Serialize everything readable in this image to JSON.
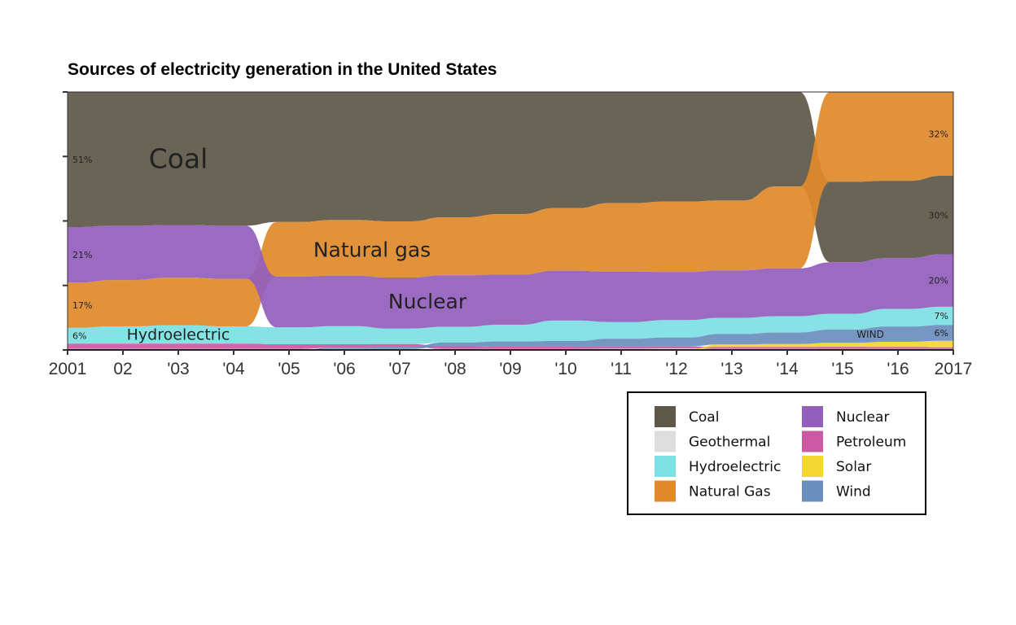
{
  "chart_data": {
    "type": "area",
    "title": "Sources of electricity generation in the United States",
    "x_tick_labels": [
      "2001",
      "02",
      "'03",
      "'04",
      "'05",
      "'06",
      "'07",
      "'08",
      "'09",
      "'10",
      "'11",
      "'12",
      "'13",
      "'14",
      "'15",
      "'16",
      "2017"
    ],
    "years": [
      2001,
      2002,
      2003,
      2004,
      2005,
      2006,
      2007,
      2008,
      2009,
      2010,
      2011,
      2012,
      2013,
      2014,
      2015,
      2016,
      2017
    ],
    "ylim": [
      0,
      100
    ],
    "stacking_note": "ranked stack: largest source on top each year",
    "series": [
      {
        "name": "Coal",
        "color": "#5e5849",
        "values": [
          51,
          50.5,
          50.5,
          50.5,
          50,
          49.5,
          49.5,
          47.5,
          47.5,
          45.5,
          43,
          43.5,
          43.5,
          37.5,
          30.5,
          30.5,
          30
        ]
      },
      {
        "name": "Geothermal",
        "color": "#dddddd",
        "values": [
          0.4,
          0.4,
          0.4,
          0.4,
          0.4,
          0.4,
          0.4,
          0.4,
          0.4,
          0.4,
          0.4,
          0.4,
          0.4,
          0.4,
          0.4,
          0.4,
          0.4
        ]
      },
      {
        "name": "Hydroelectric",
        "color": "#7de0e3",
        "values": [
          6,
          6.5,
          7,
          6.5,
          6.5,
          7,
          6,
          6,
          6.5,
          8,
          6.5,
          7,
          6.5,
          6.5,
          6,
          7,
          7
        ]
      },
      {
        "name": "Natural Gas",
        "color": "#e08a2b",
        "values": [
          17,
          17.5,
          18,
          18,
          21,
          21.5,
          21.5,
          22,
          23.5,
          24.5,
          26.5,
          28,
          28,
          32.5,
          34,
          35,
          32
        ]
      },
      {
        "name": "Nuclear",
        "color": "#935fbc",
        "values": [
          21,
          20.5,
          20,
          20,
          19.5,
          19.5,
          19.5,
          19.5,
          19.5,
          19.5,
          19.5,
          19,
          19,
          19,
          19.5,
          20,
          20
        ]
      },
      {
        "name": "Petroleum",
        "color": "#cc5aa3",
        "values": [
          2,
          2,
          2,
          2,
          1.8,
          1.3,
          1,
          1,
          0.9,
          0.9,
          0.8,
          0.8,
          0.8,
          0.8,
          0.8,
          0.8,
          0.6
        ]
      },
      {
        "name": "Solar",
        "color": "#f2d631",
        "values": [
          0,
          0,
          0,
          0,
          0,
          0,
          0,
          0,
          0,
          0,
          0.1,
          0.2,
          1,
          1.2,
          1.5,
          2,
          2.5
        ]
      },
      {
        "name": "Wind",
        "color": "#6b8fbd",
        "values": [
          0,
          0,
          0,
          0,
          0,
          0.5,
          0.8,
          1.4,
          2,
          2.2,
          3,
          3.5,
          4.2,
          4.5,
          5,
          6,
          6
        ]
      }
    ],
    "in_chart_labels": [
      {
        "text": "Coal",
        "series": "Coal"
      },
      {
        "text": "Natural gas",
        "series": "Natural Gas"
      },
      {
        "text": "Nuclear",
        "series": "Nuclear"
      },
      {
        "text": "Hydroelectric",
        "series": "Hydroelectric"
      },
      {
        "text": "WIND",
        "series": "Wind"
      }
    ],
    "value_labels_2001": [
      {
        "text": "51%",
        "series": "Coal"
      },
      {
        "text": "21%",
        "series": "Nuclear"
      },
      {
        "text": "17%",
        "series": "Natural Gas"
      },
      {
        "text": "6%",
        "series": "Hydroelectric"
      }
    ],
    "value_labels_2017": [
      {
        "text": "32%",
        "series": "Natural Gas"
      },
      {
        "text": "30%",
        "series": "Coal"
      },
      {
        "text": "20%",
        "series": "Nuclear"
      },
      {
        "text": "7%",
        "series": "Hydroelectric"
      },
      {
        "text": "6%",
        "series": "Wind"
      }
    ],
    "legend": {
      "position": "bottom-right",
      "columns": [
        [
          "Coal",
          "Geothermal",
          "Hydroelectric",
          "Natural Gas"
        ],
        [
          "Nuclear",
          "Petroleum",
          "Solar",
          "Wind"
        ]
      ]
    },
    "grid": false
  }
}
